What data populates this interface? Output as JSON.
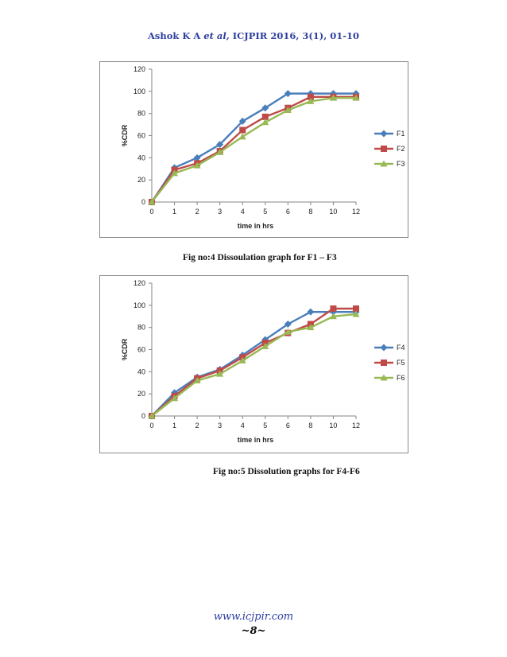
{
  "header": {
    "authors": "Ashok K A ",
    "etal": "et al,",
    "journal": " ICJPIR 2016, 3(1), 01-10"
  },
  "figures": [
    {
      "caption": "Fig no:4   Dissoulation graph for F1 – F3"
    },
    {
      "caption": "Fig no:5 Dissolution graphs for F4-F6"
    }
  ],
  "footer": {
    "url": "www.icjpir.com",
    "page": "~8~"
  },
  "chart_data": [
    {
      "type": "line",
      "categories": [
        "0",
        "1",
        "2",
        "3",
        "4",
        "5",
        "6",
        "8",
        "10",
        "12"
      ],
      "xlabel": "time in hrs",
      "ylabel": "%CDR",
      "ylim": [
        0,
        120
      ],
      "yticks": [
        0,
        20,
        40,
        60,
        80,
        100,
        120
      ],
      "grid": false,
      "legend": "right",
      "series": [
        {
          "name": "F1",
          "color": "#4a7ebb",
          "marker": "diamond",
          "values": [
            0,
            31,
            40,
            52,
            73,
            85,
            98,
            98,
            98,
            98
          ]
        },
        {
          "name": "F2",
          "color": "#be4b48",
          "marker": "square",
          "values": [
            0,
            29,
            35,
            46,
            65,
            77,
            85,
            95,
            95,
            95
          ]
        },
        {
          "name": "F3",
          "color": "#98b954",
          "marker": "triangle",
          "values": [
            0,
            26,
            33,
            45,
            59,
            72,
            83,
            91,
            94,
            94
          ]
        }
      ]
    },
    {
      "type": "line",
      "categories": [
        "0",
        "1",
        "2",
        "3",
        "4",
        "5",
        "6",
        "8",
        "10",
        "12"
      ],
      "xlabel": "time in hrs",
      "ylabel": "%CDR",
      "ylim": [
        0,
        120
      ],
      "yticks": [
        0,
        20,
        40,
        60,
        80,
        100,
        120
      ],
      "grid": false,
      "legend": "right",
      "series": [
        {
          "name": "F4",
          "color": "#4a7ebb",
          "marker": "diamond",
          "values": [
            0,
            21,
            35,
            42,
            55,
            69,
            83,
            94,
            94,
            94
          ]
        },
        {
          "name": "F5",
          "color": "#be4b48",
          "marker": "square",
          "values": [
            0,
            18,
            34,
            41,
            53,
            66,
            75,
            83,
            97,
            97
          ]
        },
        {
          "name": "F6",
          "color": "#98b954",
          "marker": "triangle",
          "values": [
            0,
            16,
            32,
            38,
            50,
            63,
            76,
            80,
            90,
            92
          ]
        }
      ]
    }
  ]
}
